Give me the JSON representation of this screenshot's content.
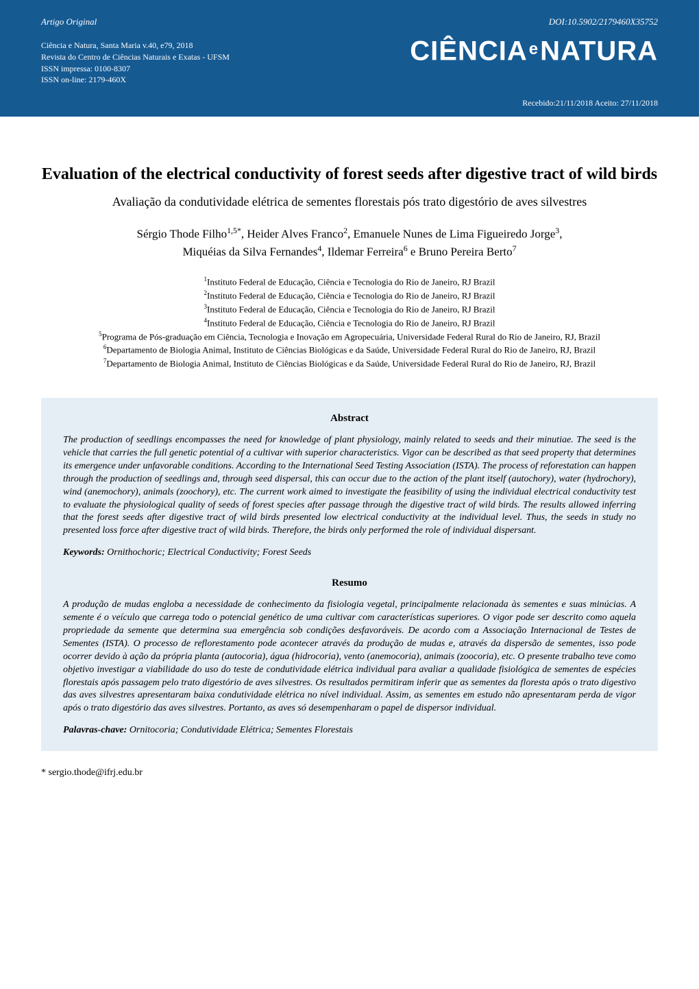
{
  "header": {
    "article_type": "Artigo Original",
    "doi": "DOI:10.5902/2179460X35752",
    "pub_line1": "Ciência e Natura, Santa Maria v.40, e79, 2018",
    "pub_line2": "Revista do Centro de Ciências Naturais e Exatas - UFSM",
    "pub_line3": "ISSN impressa: 0100-8307",
    "pub_line4": "ISSN on-line: 2179-460X",
    "journal_name_1": "CIÊNCIA",
    "journal_name_e": "e",
    "journal_name_2": "NATURA",
    "dates": "Recebido:21/11/2018 Aceito: 27/11/2018"
  },
  "title_en": "Evaluation of the electrical conductivity of forest seeds after digestive tract of wild birds",
  "title_pt": "Avaliação da condutividade elétrica de sementes florestais pós trato digestório de aves silvestres",
  "authors_line1": "Sérgio Thode Filho",
  "authors_sup1": "1,5*",
  "authors_line1b": ", Heider Alves Franco",
  "authors_sup2": "2",
  "authors_line1c": ", Emanuele Nunes de Lima Figueiredo Jorge",
  "authors_sup3": "3",
  "authors_line1d": ",",
  "authors_line2a": "Miquéias da Silva Fernandes",
  "authors_sup4": "4",
  "authors_line2b": ", Ildemar Ferreira",
  "authors_sup6": "6",
  "authors_line2c": " e Bruno Pereira Berto",
  "authors_sup7": "7",
  "affiliations": {
    "a1_sup": "1",
    "a1": "Instituto Federal de Educação, Ciência e Tecnologia do Rio de Janeiro, RJ  Brazil",
    "a2_sup": "2",
    "a2": "Instituto Federal de Educação, Ciência e Tecnologia do Rio de Janeiro, RJ  Brazil",
    "a3_sup": "3",
    "a3": "Instituto Federal de Educação, Ciência e Tecnologia do Rio de Janeiro, RJ  Brazil",
    "a4_sup": "4",
    "a4": "Instituto Federal de Educação, Ciência e Tecnologia do Rio de Janeiro, RJ  Brazil",
    "a5_sup": "5",
    "a5": "Programa de Pós-graduação em Ciência, Tecnologia e Inovação em Agropecuária, Universidade Federal Rural do Rio de Janeiro, RJ, Brazil",
    "a6_sup": "6",
    "a6": "Departamento de Biologia Animal, Instituto de Ciências Biológicas e da Saúde, Universidade Federal Rural do Rio de Janeiro, RJ, Brazil",
    "a7_sup": "7",
    "a7": "Departamento de Biologia Animal, Instituto de Ciências Biológicas e da Saúde, Universidade Federal Rural do Rio de Janeiro, RJ, Brazil"
  },
  "abstract": {
    "heading": "Abstract",
    "text": "The production of seedlings encompasses the need for knowledge of plant physiology, mainly related to seeds and their minutiae. The seed is the vehicle that carries the full genetic potential of a cultivar with superior characteristics. Vigor can be described as that seed property that determines its emergence under unfavorable conditions. According to the International Seed Testing Association (ISTA). The process of reforestation can happen through the production of seedlings and, through seed dispersal, this can occur due to the action of the plant itself (autochory), water (hydrochory), wind (anemochory), animals (zoochory), etc. The current work aimed to investigate the feasibility of using the individual electrical conductivity test to evaluate the physiological quality of seeds of forest species after passage through the digestive tract of wild birds. The results allowed inferring that the forest seeds after digestive tract of wild birds presented low electrical conductivity at the individual level. Thus, the seeds in study no presented loss force after digestive tract of wild birds.  Therefore, the birds only performed the role of individual dispersant.",
    "keywords_label": "Keywords:",
    "keywords": " Ornithochoric; Electrical Conductivity; Forest Seeds"
  },
  "resumo": {
    "heading": "Resumo",
    "text": "A produção de mudas engloba a necessidade de conhecimento da fisiologia vegetal, principalmente relacionada às sementes e suas minúcias. A semente é o veículo que carrega todo o potencial genético de uma cultivar com características superiores. O vigor pode ser descrito como aquela propriedade da semente que determina sua emergência sob condições desfavoráveis. De acordo com a Associação Internacional de Testes de Sementes (ISTA). O processo de reflorestamento pode acontecer através da produção de mudas e, através da dispersão de sementes, isso pode ocorrer devido à ação da própria planta (autocoria), água (hidrocoria), vento (anemocoria), animais (zoocoria), etc. O presente trabalho teve como objetivo investigar a viabilidade do uso do teste de condutividade elétrica individual para avaliar a qualidade fisiológica de sementes de espécies florestais após passagem pelo trato digestório de aves silvestres. Os resultados permitiram inferir que as sementes da floresta após o trato digestivo das aves silvestres apresentaram baixa condutividade elétrica no nível individual. Assim, as sementes em estudo não apresentaram perda de vigor após o trato digestório das aves silvestres. Portanto, as aves só desempenharam o papel de dispersor individual.",
    "keywords_label": "Palavras-chave:",
    "keywords": " Ornitocoria; Condutividade Elétrica; Sementes Florestais"
  },
  "corr_email_star": "*",
  "corr_email": " sergio.thode@ifrj.edu.br",
  "colors": {
    "header_bg": "#165a92",
    "abstract_bg": "#e6eef5",
    "text_white": "#ffffff",
    "text_black": "#000000"
  }
}
